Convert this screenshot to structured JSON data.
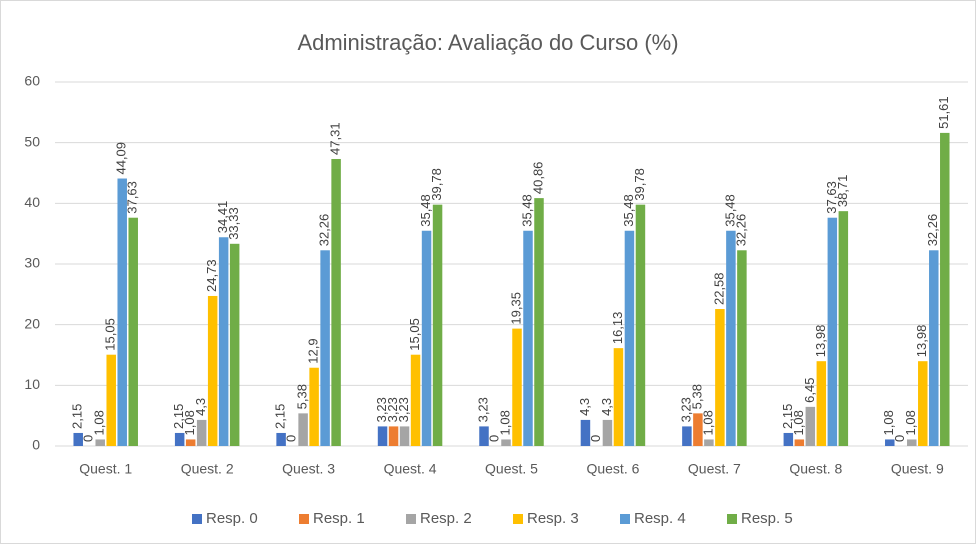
{
  "chart_data": {
    "type": "bar",
    "title": "Administração: Avaliação do Curso (%)",
    "categories": [
      "Quest. 1",
      "Quest. 2",
      "Quest. 3",
      "Quest. 4",
      "Quest. 5",
      "Quest. 6",
      "Quest. 7",
      "Quest. 8",
      "Quest. 9"
    ],
    "series": [
      {
        "name": "Resp. 0",
        "color": "#4472c4",
        "values": [
          2.15,
          2.15,
          2.15,
          3.23,
          3.23,
          4.3,
          3.23,
          2.15,
          1.08
        ],
        "value_labels": [
          "2,15",
          "2,15",
          "2,15",
          "3,23",
          "3,23",
          "4,3",
          "3,23",
          "2,15",
          "1,08"
        ]
      },
      {
        "name": "Resp. 1",
        "color": "#ed7d31",
        "values": [
          0,
          1.08,
          0,
          3.23,
          0,
          0,
          5.38,
          1.08,
          0
        ],
        "value_labels": [
          "0",
          "1,08",
          "0",
          "3,23",
          "0",
          "0",
          "5,38",
          "1,08",
          "0"
        ]
      },
      {
        "name": "Resp. 2",
        "color": "#a5a5a5",
        "values": [
          1.08,
          4.3,
          5.38,
          3.23,
          1.08,
          4.3,
          1.08,
          6.45,
          1.08
        ],
        "value_labels": [
          "1,08",
          "4,3",
          "5,38",
          "3,23",
          "1,08",
          "4,3",
          "1,08",
          "6,45",
          "1,08"
        ]
      },
      {
        "name": "Resp. 3",
        "color": "#ffc000",
        "values": [
          15.05,
          24.73,
          12.9,
          15.05,
          19.35,
          16.13,
          22.58,
          13.98,
          13.98
        ],
        "value_labels": [
          "15,05",
          "24,73",
          "12,9",
          "15,05",
          "19,35",
          "16,13",
          "22,58",
          "13,98",
          "13,98"
        ]
      },
      {
        "name": "Resp. 4",
        "color": "#5b9bd5",
        "values": [
          44.09,
          34.41,
          32.26,
          35.48,
          35.48,
          35.48,
          35.48,
          37.63,
          32.26
        ],
        "value_labels": [
          "44,09",
          "34,41",
          "32,26",
          "35,48",
          "35,48",
          "35,48",
          "35,48",
          "37,63",
          "32,26"
        ]
      },
      {
        "name": "Resp. 5",
        "color": "#70ad47",
        "values": [
          37.63,
          33.33,
          47.31,
          39.78,
          40.86,
          39.78,
          32.26,
          38.71,
          51.61
        ],
        "value_labels": [
          "37,63",
          "33,33",
          "47,31",
          "39,78",
          "40,86",
          "39,78",
          "32,26",
          "38,71",
          "51,61"
        ]
      }
    ],
    "ylim": [
      0,
      60
    ],
    "yticks": [
      0,
      10,
      20,
      30,
      40,
      50,
      60
    ],
    "grid": true,
    "legend": "bottom"
  }
}
